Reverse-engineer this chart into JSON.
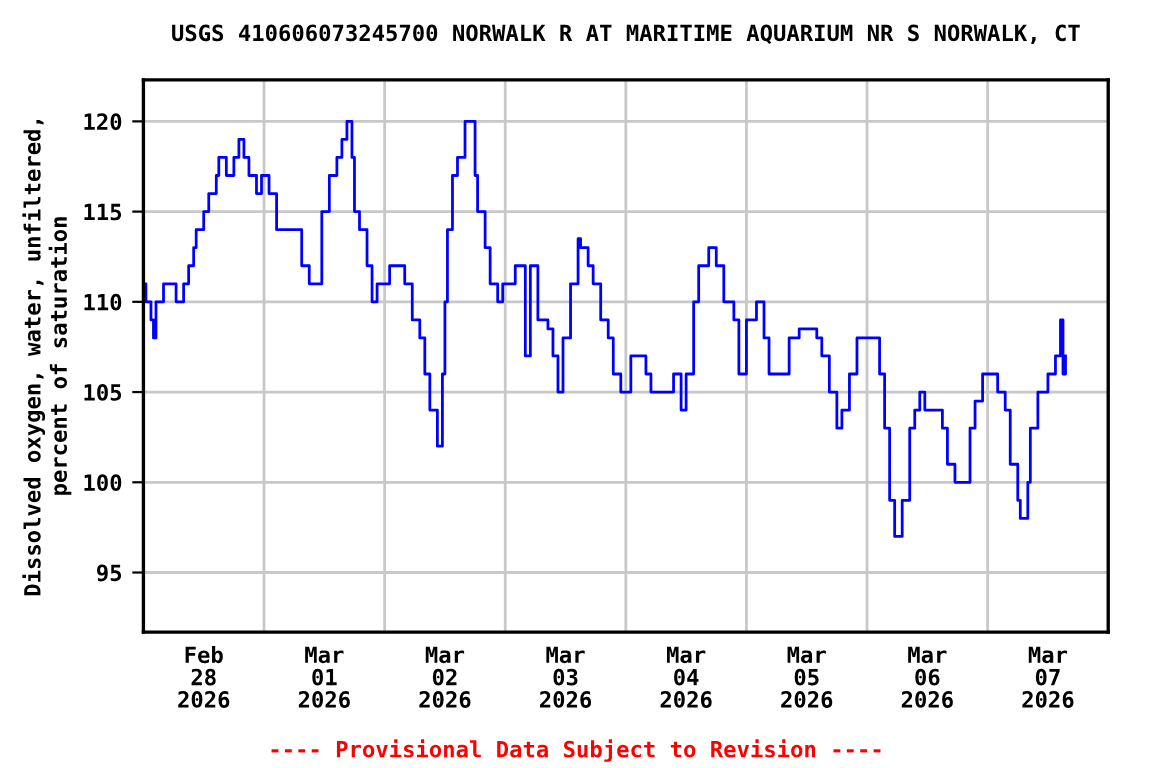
{
  "chart_data": {
    "type": "step",
    "title": "USGS 410606073245700 NORWALK R AT MARITIME AQUARIUM NR S NORWALK, CT",
    "ylabel": "Dissolved oxygen, water, unfiltered,\npercent of saturation",
    "annotations": [
      "---- Provisional Data Subject to Revision ----"
    ],
    "xlim": [
      "2026-02-28T00:00",
      "2026-03-08T00:00"
    ],
    "xticks": [
      {
        "value": "2026-02-28T00:00",
        "label": null
      },
      {
        "value": "2026-02-28T12:00",
        "label": "Feb\n28\n2026"
      },
      {
        "value": "2026-03-01T00:00",
        "label": null
      },
      {
        "value": "2026-03-01T12:00",
        "label": "Mar\n01\n2026"
      },
      {
        "value": "2026-03-02T00:00",
        "label": null
      },
      {
        "value": "2026-03-02T12:00",
        "label": "Mar\n02\n2026"
      },
      {
        "value": "2026-03-03T00:00",
        "label": null
      },
      {
        "value": "2026-03-03T12:00",
        "label": "Mar\n03\n2026"
      },
      {
        "value": "2026-03-04T00:00",
        "label": null
      },
      {
        "value": "2026-03-04T12:00",
        "label": "Mar\n04\n2026"
      },
      {
        "value": "2026-03-05T00:00",
        "label": null
      },
      {
        "value": "2026-03-05T12:00",
        "label": "Mar\n05\n2026"
      },
      {
        "value": "2026-03-06T00:00",
        "label": null
      },
      {
        "value": "2026-03-06T12:00",
        "label": "Mar\n06\n2026"
      },
      {
        "value": "2026-03-07T00:00",
        "label": null
      },
      {
        "value": "2026-03-07T12:00",
        "label": "Mar\n07\n2026"
      },
      {
        "value": "2026-03-08T00:00",
        "label": null
      }
    ],
    "ylim": [
      91.7,
      122.3
    ],
    "yticks": [
      95,
      100,
      105,
      110,
      115,
      120
    ],
    "grid": true,
    "marker": "none",
    "line_style": "solid",
    "series": [
      {
        "color": "#0000ff",
        "x": [
          "2026-02-28T00:00",
          "2026-02-28T00:30",
          "2026-02-28T01:30",
          "2026-02-28T02:00",
          "2026-02-28T02:30",
          "2026-02-28T04:00",
          "2026-02-28T06:30",
          "2026-02-28T08:00",
          "2026-02-28T09:00",
          "2026-02-28T10:00",
          "2026-02-28T10:30",
          "2026-02-28T12:00",
          "2026-02-28T13:00",
          "2026-02-28T14:30",
          "2026-02-28T15:00",
          "2026-02-28T16:30",
          "2026-02-28T18:00",
          "2026-02-28T19:00",
          "2026-02-28T20:00",
          "2026-02-28T21:00",
          "2026-02-28T22:30",
          "2026-02-28T23:30",
          "2026-03-01T01:00",
          "2026-03-01T02:30",
          "2026-03-01T04:00",
          "2026-03-01T06:00",
          "2026-03-01T07:30",
          "2026-03-01T09:00",
          "2026-03-01T10:30",
          "2026-03-01T11:30",
          "2026-03-01T13:00",
          "2026-03-01T14:30",
          "2026-03-01T15:30",
          "2026-03-01T16:30",
          "2026-03-01T17:30",
          "2026-03-01T18:00",
          "2026-03-01T19:00",
          "2026-03-01T20:30",
          "2026-03-01T21:30",
          "2026-03-01T22:30",
          "2026-03-02T01:00",
          "2026-03-02T04:00",
          "2026-03-02T05:30",
          "2026-03-02T07:00",
          "2026-03-02T08:00",
          "2026-03-02T09:00",
          "2026-03-02T10:30",
          "2026-03-02T11:30",
          "2026-03-02T12:00",
          "2026-03-02T12:30",
          "2026-03-02T13:30",
          "2026-03-02T14:30",
          "2026-03-02T16:00",
          "2026-03-02T18:00",
          "2026-03-02T18:30",
          "2026-03-02T20:00",
          "2026-03-02T21:00",
          "2026-03-02T22:30",
          "2026-03-02T23:30",
          "2026-03-03T02:00",
          "2026-03-03T03:00",
          "2026-03-03T04:00",
          "2026-03-03T05:00",
          "2026-03-03T06:30",
          "2026-03-03T08:30",
          "2026-03-03T09:30",
          "2026-03-03T10:30",
          "2026-03-03T11:30",
          "2026-03-03T13:00",
          "2026-03-03T14:30",
          "2026-03-03T15:00",
          "2026-03-03T16:30",
          "2026-03-03T17:30",
          "2026-03-03T19:00",
          "2026-03-03T20:30",
          "2026-03-03T21:30",
          "2026-03-03T23:00",
          "2026-03-04T00:00",
          "2026-03-04T01:00",
          "2026-03-04T03:00",
          "2026-03-04T04:00",
          "2026-03-04T05:00",
          "2026-03-04T07:30",
          "2026-03-04T09:30",
          "2026-03-04T11:00",
          "2026-03-04T12:00",
          "2026-03-04T13:30",
          "2026-03-04T14:30",
          "2026-03-04T16:30",
          "2026-03-04T18:00",
          "2026-03-04T19:30",
          "2026-03-04T21:30",
          "2026-03-04T22:30",
          "2026-03-05T00:00",
          "2026-03-05T02:00",
          "2026-03-05T03:30",
          "2026-03-05T04:30",
          "2026-03-05T06:00",
          "2026-03-05T08:30",
          "2026-03-05T10:30",
          "2026-03-05T14:00",
          "2026-03-05T15:00",
          "2026-03-05T16:30",
          "2026-03-05T18:00",
          "2026-03-05T19:00",
          "2026-03-05T20:30",
          "2026-03-05T22:00",
          "2026-03-06T00:30",
          "2026-03-06T02:30",
          "2026-03-06T03:30",
          "2026-03-06T04:30",
          "2026-03-06T05:30",
          "2026-03-06T07:00",
          "2026-03-06T08:30",
          "2026-03-06T09:30",
          "2026-03-06T10:30",
          "2026-03-06T11:30",
          "2026-03-06T13:00",
          "2026-03-06T15:00",
          "2026-03-06T16:00",
          "2026-03-06T17:30",
          "2026-03-06T19:30",
          "2026-03-06T20:30",
          "2026-03-06T21:30",
          "2026-03-06T23:00",
          "2026-03-07T01:00",
          "2026-03-07T02:00",
          "2026-03-07T03:30",
          "2026-03-07T04:30",
          "2026-03-07T06:00",
          "2026-03-07T06:30",
          "2026-03-07T08:00",
          "2026-03-07T08:30",
          "2026-03-07T10:00",
          "2026-03-07T12:00",
          "2026-03-07T13:30",
          "2026-03-07T14:30",
          "2026-03-07T15:00",
          "2026-03-07T15:30"
        ],
        "values": [
          111,
          110,
          109,
          108,
          110,
          111,
          110,
          111,
          112,
          113,
          114,
          115,
          116,
          117,
          118,
          117,
          118,
          119,
          118,
          117,
          116,
          117,
          116,
          114,
          114,
          114,
          112,
          111,
          111,
          115,
          117,
          118,
          119,
          120,
          118,
          115,
          114,
          112,
          110,
          111,
          112,
          111,
          109,
          108,
          106,
          104,
          102,
          106,
          110,
          114,
          117,
          118,
          120,
          117,
          115,
          113,
          111,
          110,
          111,
          112,
          112,
          107,
          112,
          109,
          108.5,
          107,
          105,
          108,
          111,
          113.5,
          113,
          112,
          111,
          109,
          108,
          106,
          105,
          105,
          107,
          107,
          106,
          105,
          105,
          106,
          104,
          106,
          110,
          112,
          113,
          112,
          110,
          109,
          106,
          109,
          110,
          108,
          106,
          106,
          108,
          108.5,
          108,
          107,
          105,
          103,
          104,
          106,
          108,
          108,
          106,
          103,
          99,
          97,
          99,
          103,
          104,
          105,
          104,
          104,
          103,
          101,
          100,
          100,
          103,
          104.5,
          106,
          106,
          105,
          104,
          101,
          99,
          98,
          100,
          103,
          105,
          106,
          107,
          109,
          106,
          107
        ]
      }
    ]
  }
}
